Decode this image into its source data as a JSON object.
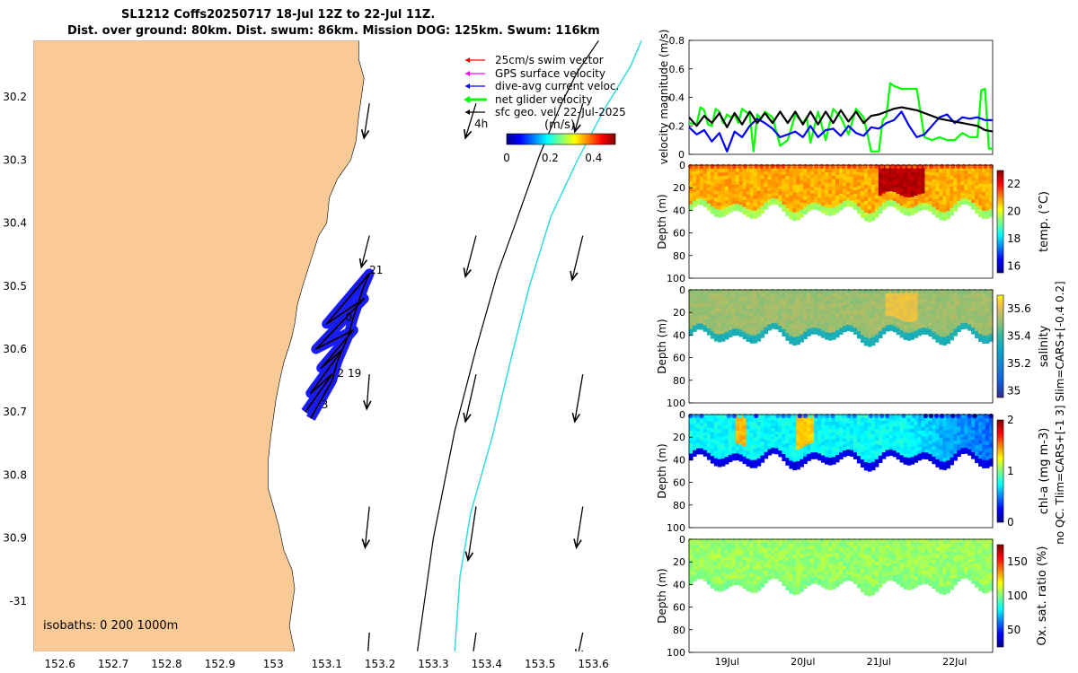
{
  "title": {
    "line1": "SL1212 Coffs20250717 18-Jul 12Z to 22-Jul 11Z.",
    "line2": "Dist. over ground: 80km. Dist. swum: 86km. Mission DOG: 125km. Swum: 116km"
  },
  "colors": {
    "land": "#F9C996",
    "swim": "#ff0000",
    "gps": "#ff00ff",
    "dive": "#0000ff",
    "net": "#00ff00",
    "geo": "#000000",
    "iso1000": "#33dddd",
    "glider_track": "#1010ff"
  },
  "chart_data": [
    {
      "type": "map",
      "legend": [
        {
          "label": "25cm/s swim vector",
          "color": "#ff0000"
        },
        {
          "label": "GPS surface velocity",
          "color": "#ff00ff"
        },
        {
          "label": "dive-avg current veloc.",
          "color": "#0000ff"
        },
        {
          "label": "net glider velocity",
          "color": "#00ff00"
        },
        {
          "label": "sfc geo. vel. 22-Jul-2025",
          "color": "#000000"
        }
      ],
      "colorbar": {
        "label": "(m/s)",
        "ticks": [
          "0",
          "0.2",
          "0.4"
        ],
        "range": [
          0,
          0.5
        ]
      },
      "note_4h": "4h",
      "isobath_text": "isobaths: 0   200  1000m",
      "xlim": [
        152.55,
        153.7
      ],
      "ylim": [
        -31.08,
        -30.11
      ],
      "xticks": [
        152.6,
        152.7,
        152.8,
        152.9,
        153,
        153.1,
        153.2,
        153.3,
        153.4,
        153.5,
        153.6
      ],
      "xtick_labels": [
        "152.6",
        "152.7",
        "152.8",
        "152.9",
        "153",
        "153.1",
        "153.2",
        "153.3",
        "153.4",
        "153.5",
        "153.6"
      ],
      "yticks": [
        -30.2,
        -30.3,
        -30.4,
        -30.5,
        -30.6,
        -30.7,
        -30.8,
        -30.9,
        -31
      ],
      "ytick_labels": [
        "30.2",
        "30.3",
        "30.4",
        "30.5",
        "30.6",
        "30.7",
        "30.8",
        "30.9",
        "-31"
      ],
      "day_labels": [
        {
          "text": "21",
          "lon": 153.18,
          "lat": -30.48
        },
        {
          "text": "0",
          "lon": 153.135,
          "lat": -30.555
        },
        {
          "text": "2 19",
          "lon": 153.12,
          "lat": -30.644
        },
        {
          "text": "3",
          "lon": 153.09,
          "lat": -30.694
        }
      ],
      "coast": [
        [
          152.55,
          -30.11
        ],
        [
          153.16,
          -30.11
        ],
        [
          153.16,
          -30.14
        ],
        [
          153.17,
          -30.17
        ],
        [
          153.165,
          -30.2
        ],
        [
          153.16,
          -30.23
        ],
        [
          153.155,
          -30.27
        ],
        [
          153.145,
          -30.3
        ],
        [
          153.12,
          -30.33
        ],
        [
          153.105,
          -30.36
        ],
        [
          153.1,
          -30.4
        ],
        [
          153.085,
          -30.42
        ],
        [
          153.07,
          -30.46
        ],
        [
          153.055,
          -30.5
        ],
        [
          153.045,
          -30.53
        ],
        [
          153.04,
          -30.56
        ],
        [
          153.035,
          -30.58
        ],
        [
          153.028,
          -30.6
        ],
        [
          153.02,
          -30.62
        ],
        [
          153.012,
          -30.65
        ],
        [
          153.005,
          -30.68
        ],
        [
          153.0,
          -30.71
        ],
        [
          152.995,
          -30.74
        ],
        [
          152.99,
          -30.78
        ],
        [
          152.99,
          -30.82
        ],
        [
          153.0,
          -30.85
        ],
        [
          153.01,
          -30.88
        ],
        [
          153.02,
          -30.92
        ],
        [
          153.035,
          -30.95
        ],
        [
          153.04,
          -30.98
        ],
        [
          153.035,
          -31.01
        ],
        [
          153.03,
          -31.04
        ],
        [
          153.04,
          -31.08
        ],
        [
          152.55,
          -31.08
        ]
      ],
      "isobath_200": [
        [
          153.27,
          -31.08
        ],
        [
          153.3,
          -30.9
        ],
        [
          153.34,
          -30.73
        ],
        [
          153.38,
          -30.6
        ],
        [
          153.42,
          -30.48
        ],
        [
          153.45,
          -30.41
        ],
        [
          153.5,
          -30.29
        ],
        [
          153.54,
          -30.21
        ],
        [
          153.57,
          -30.16
        ],
        [
          153.61,
          -30.11
        ]
      ],
      "isobath_1000": [
        [
          153.34,
          -31.08
        ],
        [
          153.35,
          -30.96
        ],
        [
          153.37,
          -30.86
        ],
        [
          153.41,
          -30.74
        ],
        [
          153.45,
          -30.6
        ],
        [
          153.48,
          -30.5
        ],
        [
          153.52,
          -30.39
        ],
        [
          153.57,
          -30.3
        ],
        [
          153.62,
          -30.22
        ],
        [
          153.67,
          -30.15
        ],
        [
          153.69,
          -30.11
        ]
      ],
      "glider_path": [
        [
          153.07,
          -30.71
        ],
        [
          153.09,
          -30.68
        ],
        [
          153.11,
          -30.65
        ],
        [
          153.12,
          -30.62
        ],
        [
          153.14,
          -30.58
        ],
        [
          153.15,
          -30.55
        ],
        [
          153.17,
          -30.5
        ],
        [
          153.18,
          -30.48
        ],
        [
          153.1,
          -30.56
        ],
        [
          153.17,
          -30.52
        ],
        [
          153.08,
          -30.6
        ],
        [
          153.15,
          -30.57
        ],
        [
          153.09,
          -30.63
        ],
        [
          153.13,
          -30.6
        ],
        [
          153.07,
          -30.67
        ],
        [
          153.11,
          -30.64
        ],
        [
          153.06,
          -30.7
        ]
      ],
      "geo_vectors": [
        {
          "lon": 153.18,
          "lat": -30.21,
          "u": -0.01,
          "v": -0.055
        },
        {
          "lon": 153.38,
          "lat": -30.21,
          "u": -0.02,
          "v": -0.055
        },
        {
          "lon": 153.58,
          "lat": -30.21,
          "u": -0.015,
          "v": -0.045
        },
        {
          "lon": 153.18,
          "lat": -30.42,
          "u": -0.015,
          "v": -0.05
        },
        {
          "lon": 153.38,
          "lat": -30.42,
          "u": -0.02,
          "v": -0.065
        },
        {
          "lon": 153.58,
          "lat": -30.42,
          "u": -0.02,
          "v": -0.07
        },
        {
          "lon": 153.18,
          "lat": -30.64,
          "u": -0.005,
          "v": -0.055
        },
        {
          "lon": 153.38,
          "lat": -30.64,
          "u": -0.02,
          "v": -0.075
        },
        {
          "lon": 153.58,
          "lat": -30.64,
          "u": -0.015,
          "v": -0.075
        },
        {
          "lon": 153.18,
          "lat": -30.85,
          "u": -0.008,
          "v": -0.065
        },
        {
          "lon": 153.38,
          "lat": -30.85,
          "u": -0.015,
          "v": -0.085
        },
        {
          "lon": 153.58,
          "lat": -30.85,
          "u": -0.012,
          "v": -0.065
        },
        {
          "lon": 153.18,
          "lat": -31.05,
          "u": -0.005,
          "v": -0.06
        },
        {
          "lon": 153.38,
          "lat": -31.05,
          "u": -0.01,
          "v": -0.06
        },
        {
          "lon": 153.58,
          "lat": -31.05,
          "u": -0.01,
          "v": -0.04
        }
      ]
    },
    {
      "type": "line",
      "ylabel": "velocity magnitude (m/s)",
      "ylim": [
        0,
        0.8
      ],
      "yticks": [
        0,
        0.2,
        0.4,
        0.6,
        0.8
      ],
      "ytick_labels": [
        "0",
        "0.2",
        "0.4",
        "0.6",
        "0.8"
      ],
      "xlim": [
        18.5,
        22.5
      ],
      "series": [
        {
          "name": "net glider velocity",
          "color": "#00ff00",
          "x": [
            18.5,
            18.6,
            18.65,
            18.7,
            18.75,
            18.8,
            18.85,
            18.9,
            18.95,
            19.0,
            19.05,
            19.1,
            19.15,
            19.2,
            19.3,
            19.35,
            19.4,
            19.45,
            19.5,
            19.6,
            19.7,
            19.8,
            19.9,
            20.0,
            20.05,
            20.1,
            20.2,
            20.3,
            20.4,
            20.5,
            20.6,
            20.7,
            20.8,
            20.9,
            21.0,
            21.05,
            21.1,
            21.15,
            21.2,
            21.3,
            21.5,
            21.6,
            21.7,
            21.8,
            21.9,
            22.0,
            22.1,
            22.2,
            22.3,
            22.35,
            22.4,
            22.45,
            22.5
          ],
          "y": [
            0.22,
            0.21,
            0.33,
            0.31,
            0.21,
            0.2,
            0.32,
            0.3,
            0.22,
            0.28,
            0.26,
            0.28,
            0.22,
            0.32,
            0.28,
            0.02,
            0.28,
            0.25,
            0.3,
            0.26,
            0.06,
            0.1,
            0.28,
            0.22,
            0.26,
            0.08,
            0.3,
            0.1,
            0.32,
            0.26,
            0.14,
            0.32,
            0.26,
            0.02,
            0.02,
            0.24,
            0.27,
            0.5,
            0.48,
            0.46,
            0.46,
            0.12,
            0.1,
            0.12,
            0.1,
            0.1,
            0.15,
            0.12,
            0.12,
            0.45,
            0.46,
            0.04,
            0.04
          ]
        },
        {
          "name": "dive-avg current veloc.",
          "color": "#0000ff",
          "x": [
            18.5,
            18.6,
            18.7,
            18.8,
            18.9,
            19.0,
            19.1,
            19.2,
            19.3,
            19.4,
            19.5,
            19.6,
            19.7,
            19.8,
            19.9,
            20.0,
            20.1,
            20.2,
            20.3,
            20.4,
            20.5,
            20.6,
            20.7,
            20.8,
            20.9,
            21.0,
            21.1,
            21.2,
            21.3,
            21.4,
            21.5,
            21.6,
            21.7,
            21.8,
            21.9,
            22.0,
            22.1,
            22.2,
            22.3,
            22.4,
            22.5
          ],
          "y": [
            0.19,
            0.14,
            0.17,
            0.09,
            0.15,
            0.02,
            0.16,
            0.12,
            0.2,
            0.25,
            0.22,
            0.18,
            0.12,
            0.14,
            0.16,
            0.12,
            0.2,
            0.12,
            0.17,
            0.18,
            0.13,
            0.2,
            0.15,
            0.13,
            0.19,
            0.18,
            0.22,
            0.24,
            0.3,
            0.2,
            0.12,
            0.14,
            0.2,
            0.26,
            0.28,
            0.22,
            0.26,
            0.25,
            0.26,
            0.24,
            0.24
          ]
        },
        {
          "name": "sfc geo. vel.",
          "color": "#000000",
          "x": [
            18.5,
            18.6,
            18.7,
            18.8,
            18.9,
            19.0,
            19.1,
            19.2,
            19.3,
            19.4,
            19.5,
            19.6,
            19.7,
            19.8,
            19.9,
            20.0,
            20.1,
            20.2,
            20.3,
            20.4,
            20.5,
            20.6,
            20.7,
            20.8,
            20.9,
            21.0,
            21.1,
            21.2,
            21.3,
            21.4,
            21.5,
            21.6,
            21.7,
            21.8,
            21.9,
            22.0,
            22.1,
            22.2,
            22.3,
            22.4,
            22.5
          ],
          "y": [
            0.26,
            0.2,
            0.27,
            0.22,
            0.29,
            0.19,
            0.29,
            0.21,
            0.3,
            0.22,
            0.29,
            0.22,
            0.3,
            0.22,
            0.3,
            0.21,
            0.3,
            0.21,
            0.3,
            0.22,
            0.31,
            0.23,
            0.3,
            0.22,
            0.27,
            0.28,
            0.3,
            0.32,
            0.33,
            0.32,
            0.31,
            0.29,
            0.27,
            0.25,
            0.24,
            0.23,
            0.22,
            0.21,
            0.2,
            0.17,
            0.16
          ]
        }
      ]
    },
    {
      "type": "heatmap",
      "name": "temp",
      "cbar_label": "temp. (°C)",
      "ylabel": "Depth (m)",
      "ylim": [
        0,
        100
      ],
      "yticks": [
        0,
        20,
        40,
        60,
        80,
        100
      ],
      "ytick_labels": [
        "0",
        "20",
        "40",
        "60",
        "80",
        "100"
      ],
      "clim": [
        15.5,
        23
      ],
      "cticks": [
        16,
        18,
        20,
        22
      ],
      "ctick_labels": [
        "16",
        "18",
        "20",
        "22"
      ],
      "base": 20.8,
      "hot": {
        "x0": 21.0,
        "x1": 21.6,
        "val": 22.6
      },
      "surface": 21.5,
      "edge": 19.5
    },
    {
      "type": "heatmap",
      "name": "salinity",
      "cbar_label": "salinity",
      "ylabel": "Depth (m)",
      "ylim": [
        0,
        100
      ],
      "yticks": [
        0,
        20,
        40,
        60,
        80,
        100
      ],
      "ytick_labels": [
        "0",
        "20",
        "40",
        "60",
        "80",
        "100"
      ],
      "clim": [
        34.95,
        35.7
      ],
      "cticks": [
        35,
        35.2,
        35.4,
        35.6
      ],
      "ctick_labels": [
        "35",
        "35.2",
        "35.4",
        "35.6"
      ],
      "base": 35.52,
      "hot": {
        "x0": 21.1,
        "x1": 21.5,
        "val": 35.62
      },
      "surface": 35.5,
      "edge": 35.35
    },
    {
      "type": "heatmap",
      "name": "chl",
      "cbar_label": "chl-a (mg m-3)",
      "ylabel": "Depth (m)",
      "ylim": [
        0,
        100
      ],
      "yticks": [
        0,
        20,
        40,
        60,
        80,
        100
      ],
      "ytick_labels": [
        "0",
        "20",
        "40",
        "60",
        "80",
        "100"
      ],
      "clim": [
        0,
        2
      ],
      "cticks": [
        0,
        1,
        2
      ],
      "ctick_labels": [
        "0",
        "1",
        "2"
      ],
      "base": 0.75,
      "hot": {
        "x0": 19.9,
        "x1": 20.15,
        "val": 1.35
      },
      "hot2": {
        "x0": 19.1,
        "x1": 19.25,
        "val": 1.4
      },
      "surface": 0.6,
      "edge": 0.2
    },
    {
      "type": "heatmap",
      "name": "oxsat",
      "cbar_label": "Ox. sat. ratio (%)",
      "ylabel": "Depth (m)",
      "ylim": [
        0,
        100
      ],
      "yticks": [
        0,
        20,
        40,
        60,
        80,
        100
      ],
      "ytick_labels": [
        "0",
        "20",
        "40",
        "60",
        "80",
        "100"
      ],
      "clim": [
        25,
        175
      ],
      "cticks": [
        50,
        100,
        150
      ],
      "ctick_labels": [
        "50",
        "100",
        "150"
      ],
      "base": 104,
      "surface": 104,
      "edge": 100
    }
  ],
  "time_axis": {
    "xticks": [
      19,
      20,
      21,
      22
    ],
    "xtick_labels": [
      "19Jul",
      "20Jul",
      "21Jul",
      "22Jul"
    ]
  },
  "qc_note": "no QC. Tlim=CARS+[-1 3] Slim=CARS+[-0.4 0.2]"
}
